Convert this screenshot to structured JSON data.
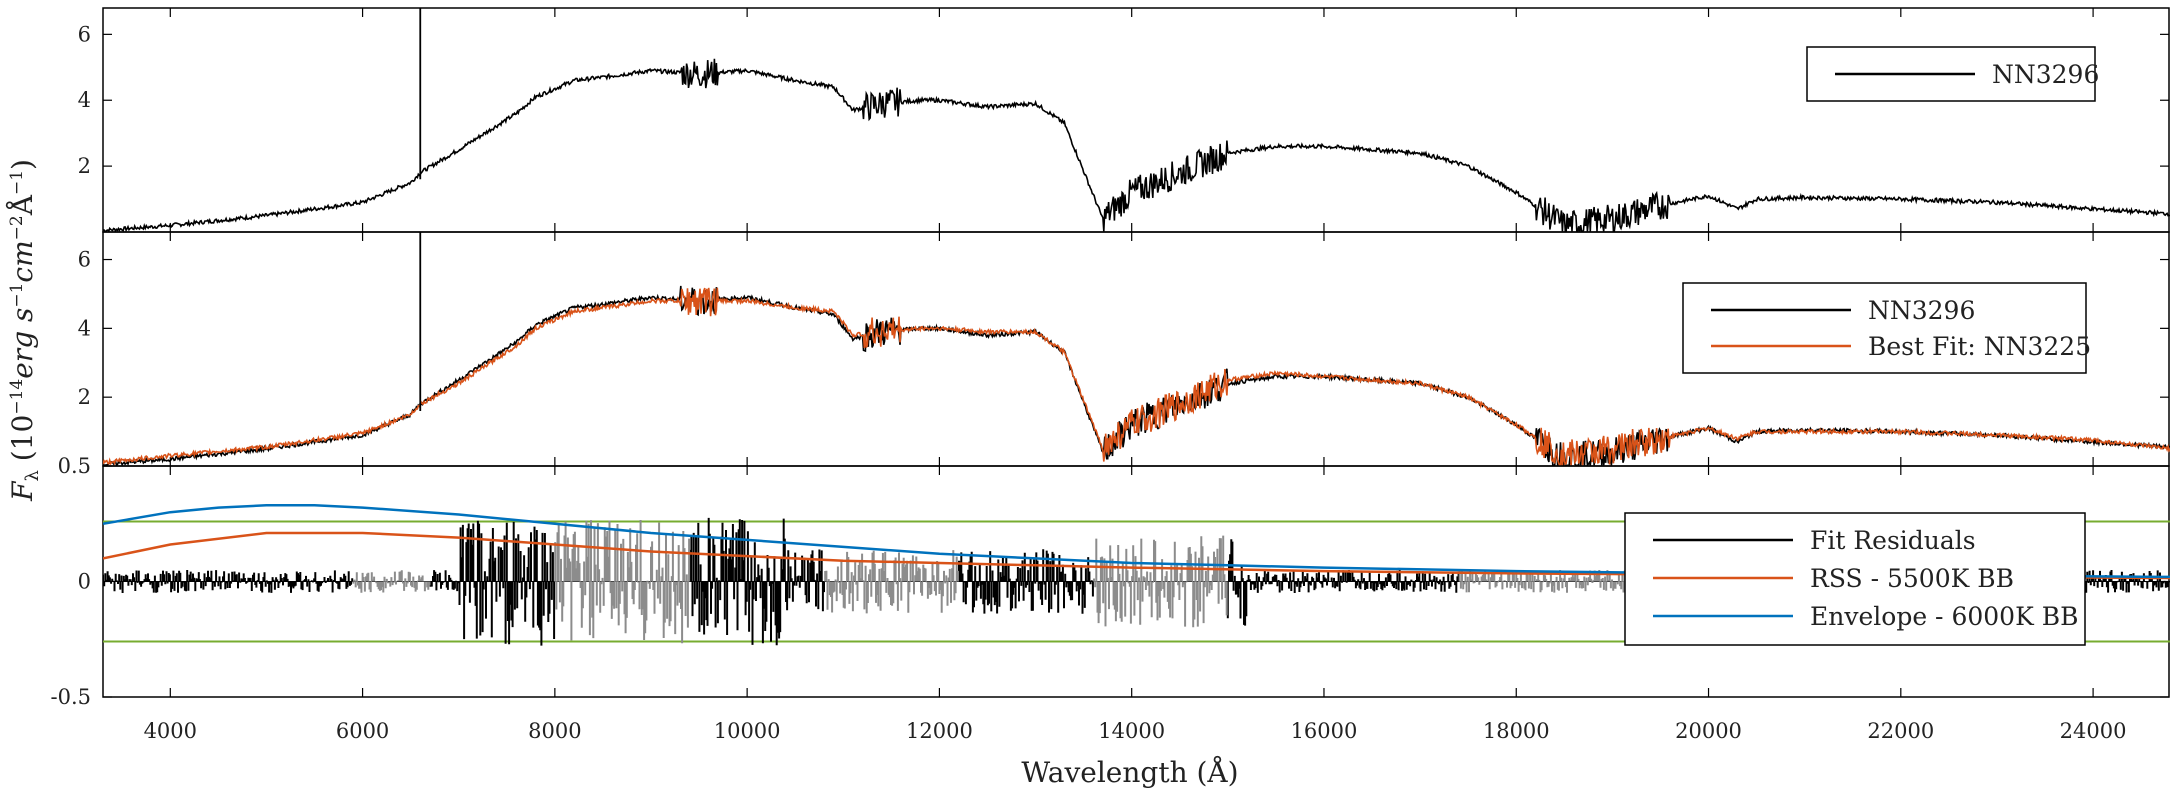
{
  "chart_data": {
    "type": "line",
    "xlabel": "Wavelength (Å)",
    "ylabel": "F_λ (10^-14 erg s^-1 cm^-2 Å^-1)",
    "xlim": [
      3300,
      24800
    ],
    "xticks": [
      4000,
      6000,
      8000,
      10000,
      12000,
      14000,
      16000,
      18000,
      20000,
      22000,
      24000
    ],
    "xtick_labels": [
      "4000",
      "6000",
      "8000",
      "10000",
      "12000",
      "14000",
      "16000",
      "18000",
      "20000",
      "22000",
      "24000"
    ],
    "colors": {
      "spectrum": "#000000",
      "fit": "#d95319",
      "masked": "#8c8c8c",
      "rss": "#d95319",
      "envelope": "#0072bd",
      "threshold": "#77ac30"
    },
    "panels": [
      {
        "id": "top",
        "ylim": [
          0,
          6.8
        ],
        "yticks": [
          2,
          4,
          6
        ],
        "ytick_labels": [
          "2",
          "4",
          "6"
        ],
        "legend": {
          "position": "top-right",
          "entries": [
            {
              "label": "NN3296",
              "color": "#000000"
            }
          ]
        },
        "series": [
          {
            "name": "NN3296",
            "color": "#000000",
            "x": [
              3300,
              4000,
              5000,
              6000,
              6500,
              6600,
              7000,
              7600,
              7800,
              8200,
              8500,
              9000,
              9500,
              10000,
              10500,
              10900,
              11100,
              11400,
              11800,
              12000,
              12500,
              13000,
              13300,
              13700,
              14000,
              14500,
              15000,
              15500,
              16000,
              16500,
              17000,
              17500,
              18000,
              18500,
              19000,
              19500,
              20000,
              20300,
              20500,
              21000,
              22000,
              23000,
              24000,
              24800
            ],
            "y": [
              0.05,
              0.2,
              0.5,
              0.9,
              1.5,
              1.8,
              2.5,
              3.6,
              4.1,
              4.6,
              4.7,
              4.9,
              4.8,
              4.9,
              4.6,
              4.4,
              3.7,
              3.9,
              4.0,
              4.0,
              3.8,
              3.9,
              3.3,
              0.4,
              1.2,
              1.8,
              2.4,
              2.6,
              2.6,
              2.5,
              2.4,
              2.0,
              1.2,
              0.2,
              0.4,
              0.8,
              1.1,
              0.7,
              1.0,
              1.05,
              1.0,
              0.9,
              0.7,
              0.55
            ]
          }
        ]
      },
      {
        "id": "middle",
        "ylim": [
          0,
          6.8
        ],
        "yticks": [
          2,
          4,
          6
        ],
        "ytick_labels": [
          "2",
          "4",
          "6"
        ],
        "legend": {
          "position": "top-right",
          "entries": [
            {
              "label": "NN3296",
              "color": "#000000"
            },
            {
              "label": "Best Fit: NN3225",
              "color": "#d95319"
            }
          ]
        },
        "series": [
          {
            "name": "NN3296",
            "color": "#000000",
            "x": [
              3300,
              4000,
              5000,
              6000,
              6500,
              6600,
              7000,
              7600,
              7800,
              8200,
              8500,
              9000,
              9500,
              10000,
              10500,
              10900,
              11100,
              11400,
              11800,
              12000,
              12500,
              13000,
              13300,
              13700,
              14000,
              14500,
              15000,
              15500,
              16000,
              16500,
              17000,
              17500,
              18000,
              18500,
              19000,
              19500,
              20000,
              20300,
              20500,
              21000,
              22000,
              23000,
              24000,
              24800
            ],
            "y": [
              0.05,
              0.2,
              0.5,
              0.9,
              1.5,
              1.8,
              2.5,
              3.6,
              4.1,
              4.6,
              4.7,
              4.9,
              4.8,
              4.9,
              4.6,
              4.4,
              3.7,
              3.9,
              4.0,
              4.0,
              3.8,
              3.9,
              3.3,
              0.4,
              1.2,
              1.8,
              2.4,
              2.6,
              2.6,
              2.5,
              2.4,
              2.0,
              1.2,
              0.2,
              0.4,
              0.8,
              1.1,
              0.7,
              1.0,
              1.05,
              1.0,
              0.9,
              0.7,
              0.55
            ]
          },
          {
            "name": "Best Fit: NN3225",
            "color": "#d95319",
            "x": [
              3300,
              4000,
              5000,
              6000,
              6500,
              6600,
              7000,
              7600,
              7800,
              8200,
              8500,
              9000,
              9500,
              10000,
              10500,
              10900,
              11100,
              11400,
              11800,
              12000,
              12500,
              13000,
              13300,
              13700,
              14000,
              14500,
              15000,
              15500,
              16000,
              16500,
              17000,
              17500,
              18000,
              18500,
              19000,
              19500,
              20000,
              20300,
              20500,
              21000,
              22000,
              23000,
              24000,
              24800
            ],
            "y": [
              0.1,
              0.3,
              0.55,
              0.95,
              1.5,
              1.8,
              2.4,
              3.5,
              4.0,
              4.5,
              4.6,
              4.8,
              4.8,
              4.8,
              4.6,
              4.5,
              3.8,
              3.9,
              4.0,
              4.0,
              3.9,
              3.9,
              3.3,
              0.5,
              1.2,
              1.8,
              2.5,
              2.7,
              2.6,
              2.5,
              2.4,
              2.0,
              1.2,
              0.3,
              0.5,
              0.8,
              1.1,
              0.8,
              1.0,
              1.0,
              1.0,
              0.9,
              0.75,
              0.5
            ]
          }
        ]
      },
      {
        "id": "bottom",
        "ylim": [
          -0.5,
          0.5
        ],
        "yticks": [
          -0.5,
          0,
          0.5
        ],
        "ytick_labels": [
          "-0.5",
          "0",
          "0.5"
        ],
        "legend": {
          "position": "bottom-right",
          "entries": [
            {
              "label": "Fit Residuals",
              "color": "#000000"
            },
            {
              "label": "RSS - 5500K BB",
              "color": "#d95319"
            },
            {
              "label": "Envelope - 6000K BB",
              "color": "#0072bd"
            }
          ]
        },
        "hlines": [
          0.26,
          -0.26
        ],
        "series": [
          {
            "name": "RSS - 5500K BB",
            "color": "#d95319",
            "x": [
              3300,
              4000,
              5000,
              6000,
              7000,
              8000,
              9000,
              10000,
              11000,
              12000,
              13000,
              14000,
              16000,
              18000,
              20000,
              22000,
              24800
            ],
            "y": [
              0.1,
              0.16,
              0.21,
              0.21,
              0.19,
              0.16,
              0.13,
              0.11,
              0.09,
              0.08,
              0.07,
              0.06,
              0.045,
              0.035,
              0.03,
              0.022,
              0.015
            ]
          },
          {
            "name": "Envelope - 6000K BB",
            "color": "#0072bd",
            "x": [
              3300,
              4000,
              4500,
              5000,
              5500,
              6000,
              7000,
              8000,
              9000,
              10000,
              11000,
              12000,
              13000,
              14000,
              15000,
              16000,
              18000,
              20000,
              22000,
              24800
            ],
            "y": [
              0.25,
              0.3,
              0.32,
              0.33,
              0.33,
              0.32,
              0.29,
              0.25,
              0.21,
              0.18,
              0.15,
              0.12,
              0.1,
              0.08,
              0.07,
              0.06,
              0.045,
              0.035,
              0.028,
              0.02
            ]
          }
        ]
      }
    ]
  }
}
